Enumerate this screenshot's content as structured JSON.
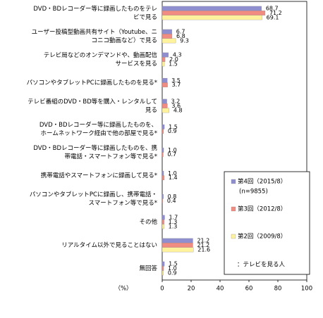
{
  "chart_data": {
    "type": "hbar",
    "categories": [
      [
        "DVD・BDレコーダー等に録画したものをテレ",
        "ビで見る"
      ],
      [
        "ユーザー投稿型動画共有サイト（Youtube、ニ",
        "コニコ動画など）で見る"
      ],
      [
        "テレビ局などのオンデマンドや、動画配信",
        "サービスを見る"
      ],
      [
        "パソコンやタブレットPCに録画したものを見る*"
      ],
      [
        "テレビ番組のDVD・BD等を購入・レンタルして",
        "見る"
      ],
      [
        "DVD・BDレコーダー等に録画したものを、",
        "ホームネットワーク経由で他の部屋で見る*"
      ],
      [
        "DVD・BDレコーダー等に録画したものを、携",
        "帯電話・スマートフォン等で見る*"
      ],
      [
        "携帯電話やスマートフォンに録画して見る*"
      ],
      [
        "パソコンやタブレットPCに録画し、携帯電話・",
        "スマートフォン等で見る*"
      ],
      [
        "その他"
      ],
      [
        "リアルタイム以外で見ることはない"
      ],
      [
        "無回答"
      ]
    ],
    "series": [
      {
        "name": "第4回（2015/8）",
        "n": "(n=9855)",
        "color": "#8f8fd0",
        "values": [
          68.7,
          6.7,
          4.3,
          3.5,
          3.2,
          1.5,
          1.0,
          1.0,
          0.8,
          1.7,
          21.2,
          1.5
        ],
        "value_labels": [
          "68.7",
          "6.7",
          "4.3",
          "3.5",
          "3.2",
          "1.5",
          "1.0",
          "1.0",
          "0.8",
          "1.7",
          "21.2",
          "1.5"
        ]
      },
      {
        "name": "第3回（2012/8）",
        "color": "#f08c82",
        "values": [
          71.2,
          6.8,
          2.0,
          3.7,
          3.6,
          0.9,
          0.7,
          1.4,
          0.4,
          1.3,
          21.2,
          1.0
        ],
        "value_labels": [
          "71.2",
          "6.8",
          "2.0",
          "3.7",
          "3.6",
          "0.9",
          "0.7",
          "1.4",
          "0.4",
          "1.3",
          "21.2",
          "1.0"
        ]
      },
      {
        "name": "第2回（2009/8）",
        "color": "#fff29c",
        "values": [
          69.1,
          9.3,
          1.5,
          null,
          4.8,
          null,
          null,
          null,
          null,
          1.3,
          21.6,
          0.9
        ],
        "value_labels": [
          "69.1",
          "9.3",
          "1.5",
          null,
          "4.8",
          null,
          null,
          null,
          null,
          "1.3",
          "21.6",
          "0.9"
        ]
      }
    ],
    "xlim": [
      0,
      100
    ],
    "xticks": [
      0,
      20,
      40,
      60,
      80,
      100
    ],
    "axis_unit": "（%）",
    "note": "：テレビを見る人"
  }
}
